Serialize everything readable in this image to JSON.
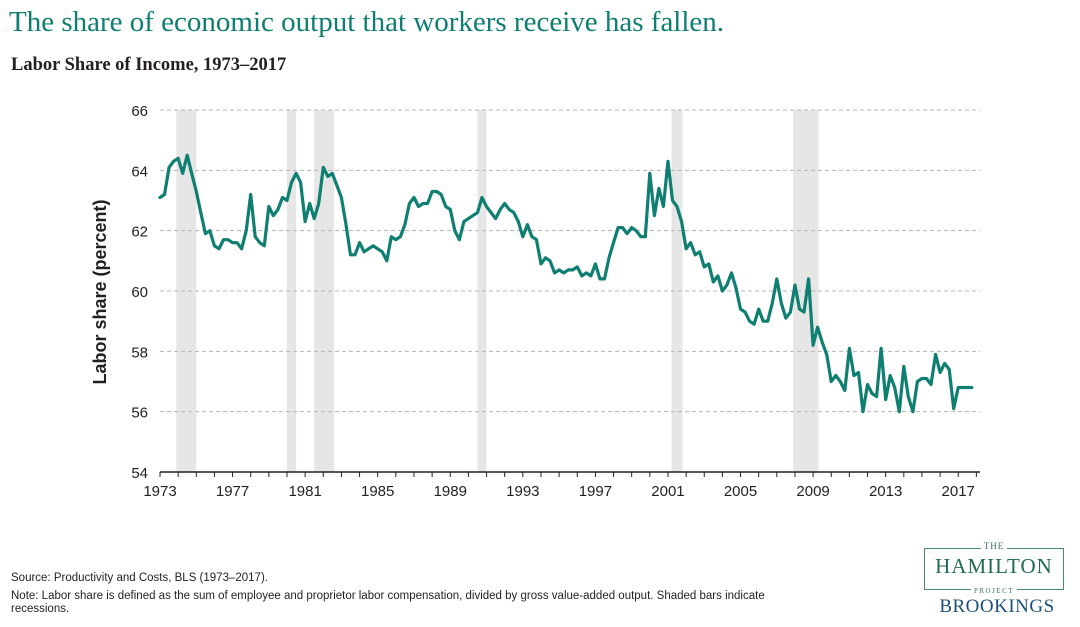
{
  "headline": "The share of economic output that workers receive has fallen.",
  "chart_data": {
    "type": "line",
    "title": "Labor Share of Income, 1973–2017",
    "ylabel": "Labor share (percent)",
    "xlabel": "",
    "xlim": [
      1973,
      2018.2
    ],
    "ylim": [
      54,
      66
    ],
    "yticks": [
      54,
      56,
      58,
      60,
      62,
      64,
      66
    ],
    "xtick_labels": [
      "1973",
      "1977",
      "1981",
      "1985",
      "1989",
      "1993",
      "1997",
      "2001",
      "2005",
      "2009",
      "2013",
      "2017"
    ],
    "grid": "horizontal dashed",
    "line_color": "#0e7f71",
    "recession_color": "#e6e6e6",
    "recessions": [
      {
        "start": 1973.9,
        "end": 1975.0
      },
      {
        "start": 1980.0,
        "end": 1980.5
      },
      {
        "start": 1981.5,
        "end": 1982.6
      },
      {
        "start": 1990.5,
        "end": 1991.0
      },
      {
        "start": 2001.2,
        "end": 2001.8
      },
      {
        "start": 2007.9,
        "end": 2009.3
      }
    ],
    "series": [
      {
        "x": [
          1973.0,
          1973.25,
          1973.5,
          1973.75,
          1974.0,
          1974.25,
          1974.5,
          1974.75,
          1975.0,
          1975.25,
          1975.5,
          1975.75,
          1976.0,
          1976.25,
          1976.5,
          1976.75,
          1977.0,
          1977.25,
          1977.5,
          1977.75,
          1978.0,
          1978.25,
          1978.5,
          1978.75,
          1979.0,
          1979.25,
          1979.5,
          1979.75,
          1980.0,
          1980.25,
          1980.5,
          1980.75,
          1981.0,
          1981.25,
          1981.5,
          1981.75,
          1982.0,
          1982.25,
          1982.5,
          1982.75,
          1983.0,
          1983.25,
          1983.5,
          1983.75,
          1984.0,
          1984.25,
          1984.5,
          1984.75,
          1985.0,
          1985.25,
          1985.5,
          1985.75,
          1986.0,
          1986.25,
          1986.5,
          1986.75,
          1987.0,
          1987.25,
          1987.5,
          1987.75,
          1988.0,
          1988.25,
          1988.5,
          1988.75,
          1989.0,
          1989.25,
          1989.5,
          1989.75,
          1990.0,
          1990.25,
          1990.5,
          1990.75,
          1991.0,
          1991.25,
          1991.5,
          1991.75,
          1992.0,
          1992.25,
          1992.5,
          1992.75,
          1993.0,
          1993.25,
          1993.5,
          1993.75,
          1994.0,
          1994.25,
          1994.5,
          1994.75,
          1995.0,
          1995.25,
          1995.5,
          1995.75,
          1996.0,
          1996.25,
          1996.5,
          1996.75,
          1997.0,
          1997.25,
          1997.5,
          1997.75,
          1998.0,
          1998.25,
          1998.5,
          1998.75,
          1999.0,
          1999.25,
          1999.5,
          1999.75,
          2000.0,
          2000.25,
          2000.5,
          2000.75,
          2001.0,
          2001.25,
          2001.5,
          2001.75,
          2002.0,
          2002.25,
          2002.5,
          2002.75,
          2003.0,
          2003.25,
          2003.5,
          2003.75,
          2004.0,
          2004.25,
          2004.5,
          2004.75,
          2005.0,
          2005.25,
          2005.5,
          2005.75,
          2006.0,
          2006.25,
          2006.5,
          2006.75,
          2007.0,
          2007.25,
          2007.5,
          2007.75,
          2008.0,
          2008.25,
          2008.5,
          2008.75,
          2009.0,
          2009.25,
          2009.5,
          2009.75,
          2010.0,
          2010.25,
          2010.5,
          2010.75,
          2011.0,
          2011.25,
          2011.5,
          2011.75,
          2012.0,
          2012.25,
          2012.5,
          2012.75,
          2013.0,
          2013.25,
          2013.5,
          2013.75,
          2014.0,
          2014.25,
          2014.5,
          2014.75,
          2015.0,
          2015.25,
          2015.5,
          2015.75,
          2016.0,
          2016.25,
          2016.5,
          2016.75,
          2017.0,
          2017.25,
          2017.5,
          2017.75
        ],
        "values": [
          63.1,
          63.2,
          64.1,
          64.3,
          64.4,
          63.9,
          64.5,
          63.9,
          63.3,
          62.6,
          61.9,
          62.0,
          61.5,
          61.4,
          61.7,
          61.7,
          61.6,
          61.6,
          61.4,
          62.0,
          63.2,
          61.8,
          61.6,
          61.5,
          62.8,
          62.5,
          62.7,
          63.1,
          63.0,
          63.6,
          63.9,
          63.6,
          62.3,
          62.9,
          62.4,
          62.9,
          64.1,
          63.8,
          63.9,
          63.5,
          63.1,
          62.2,
          61.2,
          61.2,
          61.6,
          61.3,
          61.4,
          61.5,
          61.4,
          61.3,
          61.0,
          61.8,
          61.7,
          61.8,
          62.2,
          62.9,
          63.1,
          62.8,
          62.9,
          62.9,
          63.3,
          63.3,
          63.2,
          62.8,
          62.7,
          62.0,
          61.7,
          62.3,
          62.4,
          62.5,
          62.6,
          63.1,
          62.8,
          62.6,
          62.4,
          62.7,
          62.9,
          62.7,
          62.6,
          62.3,
          61.8,
          62.2,
          61.8,
          61.7,
          60.9,
          61.1,
          61.0,
          60.6,
          60.7,
          60.6,
          60.7,
          60.7,
          60.8,
          60.5,
          60.6,
          60.5,
          60.9,
          60.4,
          60.4,
          61.1,
          61.6,
          62.1,
          62.1,
          61.9,
          62.1,
          62.0,
          61.8,
          61.8,
          63.9,
          62.5,
          63.4,
          62.8,
          64.3,
          63.0,
          62.8,
          62.3,
          61.4,
          61.6,
          61.2,
          61.3,
          60.8,
          60.9,
          60.3,
          60.5,
          60.0,
          60.2,
          60.6,
          60.1,
          59.4,
          59.3,
          59.0,
          58.9,
          59.4,
          59.0,
          59.0,
          59.6,
          60.4,
          59.6,
          59.1,
          59.3,
          60.2,
          59.4,
          59.3,
          60.4,
          58.2,
          58.8,
          58.3,
          57.9,
          57.0,
          57.2,
          57.0,
          56.7,
          58.1,
          57.2,
          57.3,
          56.0,
          56.9,
          56.6,
          56.5,
          58.1,
          56.4,
          57.2,
          56.8,
          56.0,
          57.5,
          56.5,
          56.0,
          57.0,
          57.1,
          57.1,
          56.9,
          57.9,
          57.3,
          57.6,
          57.4,
          56.1,
          56.8,
          56.8,
          56.8,
          56.8
        ]
      }
    ]
  },
  "footer": {
    "source": "Source: Productivity and Costs, BLS (1973–2017).",
    "note": "Note: Labor share is defined as the sum of employee and proprietor labor compensation, divided by gross value-added output. Shaded bars indicate recessions."
  },
  "logo": {
    "the": "THE",
    "hamilton": "HAMILTON",
    "project": "PROJECT",
    "brookings": "BROOKINGS"
  }
}
